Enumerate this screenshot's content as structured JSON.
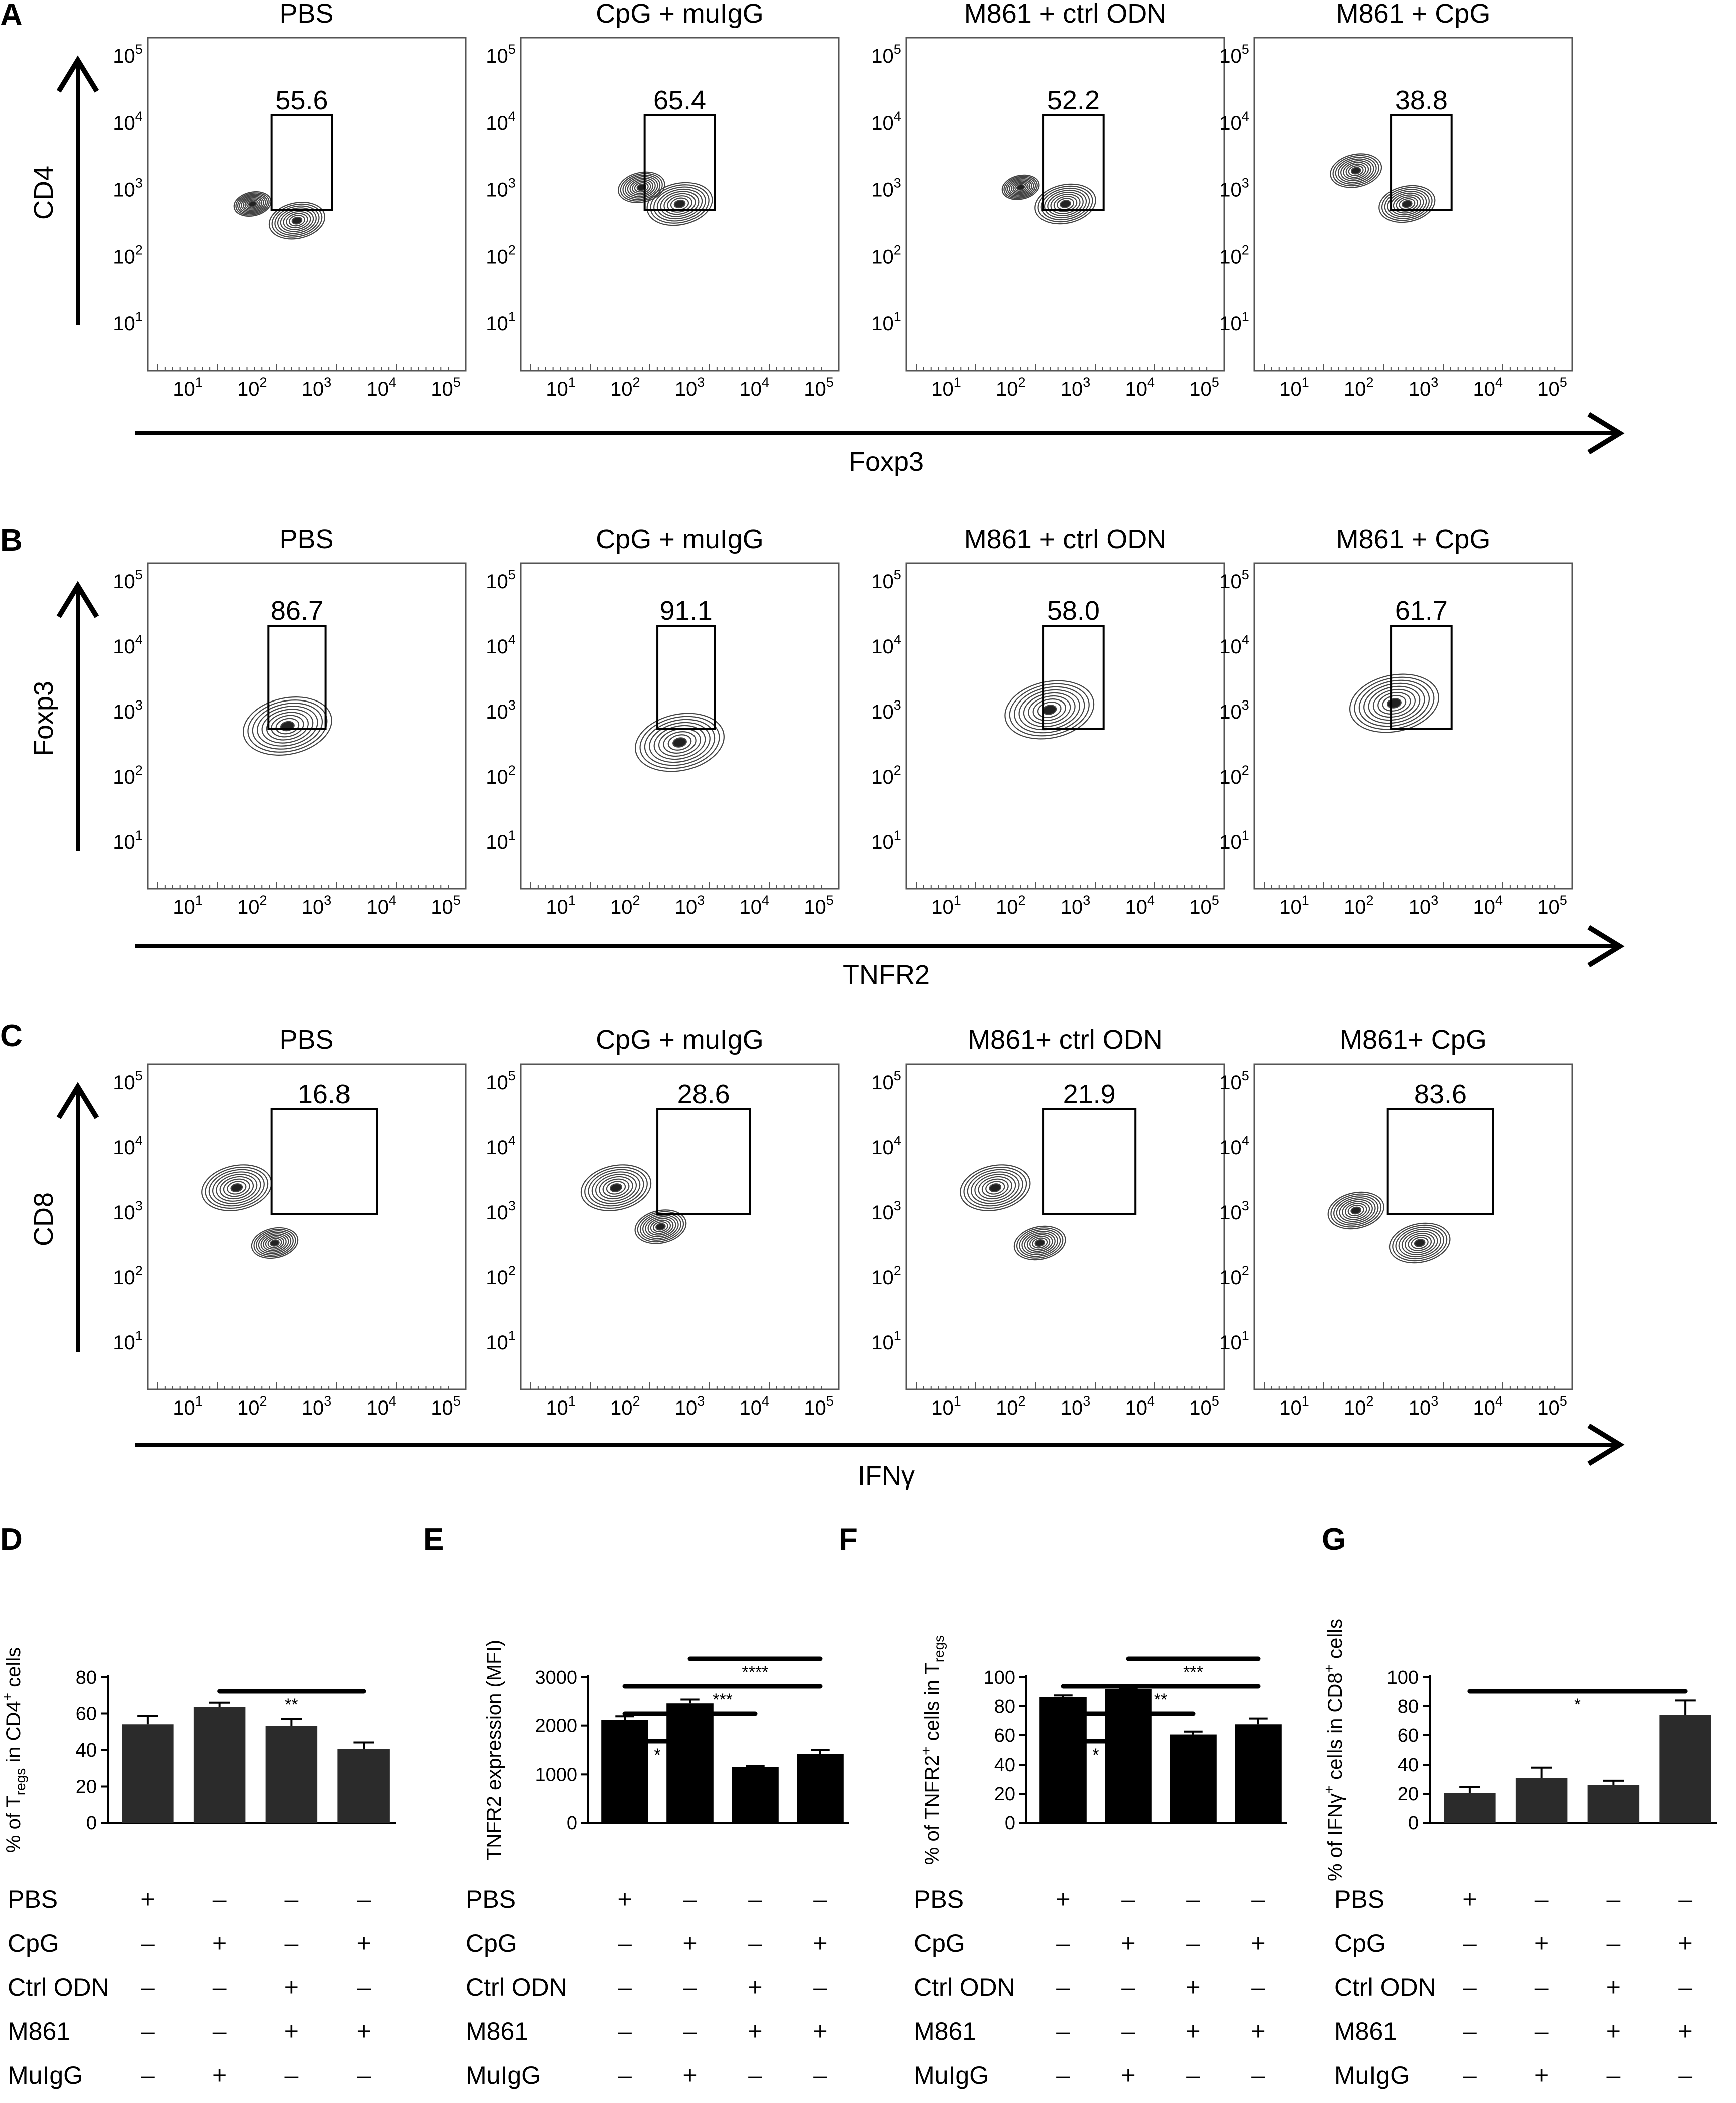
{
  "figure": {
    "panel_labels": [
      "A",
      "B",
      "C",
      "D",
      "E",
      "F",
      "G"
    ],
    "flow_rows": [
      {
        "label": "A",
        "x_axis": "Foxp3",
        "y_axis": "CD4",
        "conditions": [
          "PBS",
          "CpG + muIgG",
          "M861 + ctrl ODN",
          "M861 + CpG"
        ],
        "gate_values": [
          "55.6",
          "65.4",
          "52.2",
          "38.8"
        ]
      },
      {
        "label": "B",
        "x_axis": "TNFR2",
        "y_axis": "Foxp3",
        "conditions": [
          "PBS",
          "CpG + muIgG",
          "M861 + ctrl ODN",
          "M861 + CpG"
        ],
        "gate_values": [
          "86.7",
          "91.1",
          "58.0",
          "61.7"
        ]
      },
      {
        "label": "C",
        "x_axis": "IFNγ",
        "y_axis": "CD8",
        "conditions": [
          "PBS",
          "CpG + muIgG",
          "M861+ ctrl ODN",
          "M861+ CpG"
        ],
        "gate_values": [
          "16.8",
          "28.6",
          "21.9",
          "83.6"
        ]
      }
    ],
    "log_tick_base": "10",
    "log_tick_exponents": [
      "1",
      "2",
      "3",
      "4",
      "5"
    ],
    "treatment_rows": [
      "PBS",
      "CpG",
      "Ctrl ODN",
      "M861",
      "MuIgG"
    ],
    "treatment_matrix": [
      [
        "+",
        "–",
        "–",
        "–"
      ],
      [
        "–",
        "+",
        "–",
        "+"
      ],
      [
        "–",
        "–",
        "+",
        "–"
      ],
      [
        "–",
        "–",
        "+",
        "+"
      ],
      [
        "–",
        "+",
        "–",
        "–"
      ]
    ]
  },
  "chart_data": [
    {
      "panel": "D",
      "type": "bar",
      "ylabel_parts": [
        "% of T",
        "regs",
        " in CD4",
        "+",
        " cells"
      ],
      "ylim": [
        0,
        80
      ],
      "yticks": [
        0,
        20,
        40,
        60,
        80
      ],
      "values": [
        54,
        63.5,
        53,
        40.5
      ],
      "errors": [
        4.5,
        2.5,
        4,
        3.5
      ],
      "bar_color": "#2b2b2b",
      "significance": [
        {
          "from": 1,
          "to": 3,
          "label": "**"
        }
      ]
    },
    {
      "panel": "E",
      "type": "bar",
      "ylabel_parts": [
        "TNFR2 expression (MFI)"
      ],
      "ylim": [
        0,
        3000
      ],
      "yticks": [
        0,
        1000,
        2000,
        3000
      ],
      "values": [
        2120,
        2460,
        1150,
        1420
      ],
      "errors": [
        70,
        80,
        25,
        80
      ],
      "bar_color": "#000000",
      "significance": [
        {
          "from": 0,
          "to": 1,
          "label": "*"
        },
        {
          "from": 0,
          "to": 2,
          "label": "****"
        },
        {
          "from": 0,
          "to": 3,
          "label": "***"
        },
        {
          "from": 1,
          "to": 3,
          "label": "****"
        }
      ]
    },
    {
      "panel": "F",
      "type": "bar",
      "ylabel_parts": [
        "% of TNFR2",
        "+",
        " cells in T",
        "regs"
      ],
      "ylim": [
        0,
        100
      ],
      "yticks": [
        0,
        20,
        40,
        60,
        80,
        100
      ],
      "values": [
        86.5,
        92,
        60.5,
        67.5
      ],
      "errors": [
        1,
        0.5,
        2,
        4
      ],
      "bar_color": "#000000",
      "significance": [
        {
          "from": 0,
          "to": 1,
          "label": "*"
        },
        {
          "from": 0,
          "to": 2,
          "label": "****"
        },
        {
          "from": 0,
          "to": 3,
          "label": "**"
        },
        {
          "from": 1,
          "to": 3,
          "label": "***"
        }
      ]
    },
    {
      "panel": "G",
      "type": "bar",
      "ylabel_parts": [
        "% of IFNγ",
        "+",
        " cells in CD8",
        "+",
        " cells"
      ],
      "ylim": [
        0,
        100
      ],
      "yticks": [
        0,
        20,
        40,
        60,
        80,
        100
      ],
      "values": [
        20.5,
        31,
        26,
        74
      ],
      "errors": [
        4,
        7,
        3,
        10
      ],
      "bar_color": "#2b2b2b",
      "significance": [
        {
          "from": 0,
          "to": 3,
          "label": "*"
        }
      ]
    }
  ]
}
